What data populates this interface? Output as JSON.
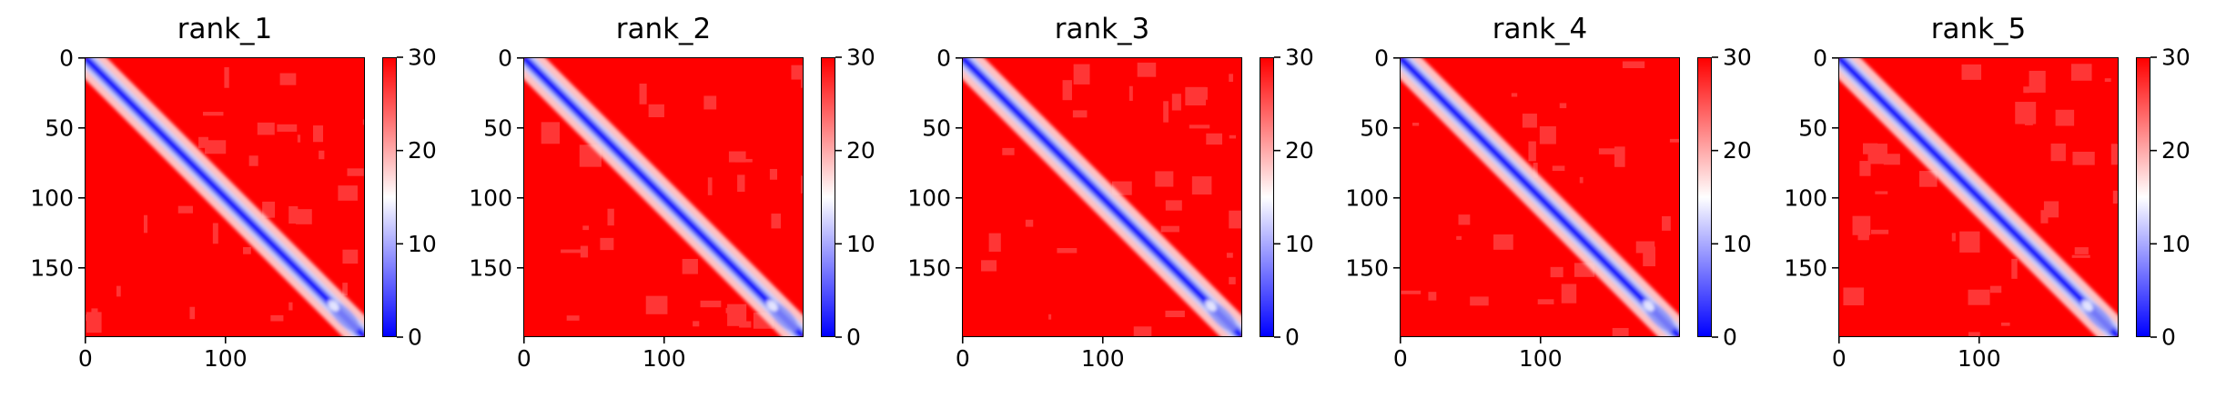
{
  "chart_data": [
    {
      "type": "heatmap",
      "title": "rank_1",
      "x_ticks": [
        0,
        100
      ],
      "y_ticks": [
        0,
        50,
        100,
        150
      ],
      "matrix_size": 200,
      "colorbar": {
        "ticks": [
          0,
          10,
          20,
          30
        ],
        "range": [
          0,
          30
        ],
        "colormap": "bwr"
      },
      "pattern": "low values along the main diagonal (blue band), high values (red) elsewhere"
    },
    {
      "type": "heatmap",
      "title": "rank_2",
      "x_ticks": [
        0,
        100
      ],
      "y_ticks": [
        0,
        50,
        100,
        150
      ],
      "matrix_size": 200,
      "colorbar": {
        "ticks": [
          0,
          10,
          20,
          30
        ],
        "range": [
          0,
          30
        ],
        "colormap": "bwr"
      },
      "pattern": "low values along the main diagonal (blue band), high values (red) elsewhere"
    },
    {
      "type": "heatmap",
      "title": "rank_3",
      "x_ticks": [
        0,
        100
      ],
      "y_ticks": [
        0,
        50,
        100,
        150
      ],
      "matrix_size": 200,
      "colorbar": {
        "ticks": [
          0,
          10,
          20,
          30
        ],
        "range": [
          0,
          30
        ],
        "colormap": "bwr"
      },
      "pattern": "low values along the main diagonal (blue band), high values (red) elsewhere"
    },
    {
      "type": "heatmap",
      "title": "rank_4",
      "x_ticks": [
        0,
        100
      ],
      "y_ticks": [
        0,
        50,
        100,
        150
      ],
      "matrix_size": 200,
      "colorbar": {
        "ticks": [
          0,
          10,
          20,
          30
        ],
        "range": [
          0,
          30
        ],
        "colormap": "bwr"
      },
      "pattern": "low values along the main diagonal (blue band), high values (red) elsewhere"
    },
    {
      "type": "heatmap",
      "title": "rank_5",
      "x_ticks": [
        0,
        100
      ],
      "y_ticks": [
        0,
        50,
        100,
        150
      ],
      "matrix_size": 200,
      "colorbar": {
        "ticks": [
          0,
          10,
          20,
          30
        ],
        "range": [
          0,
          30
        ],
        "colormap": "bwr"
      },
      "pattern": "low values along the main diagonal (blue band), high values (red) elsewhere"
    }
  ],
  "colors": {
    "low": "#0000ff",
    "mid": "#ffffff",
    "high": "#ff0000"
  }
}
